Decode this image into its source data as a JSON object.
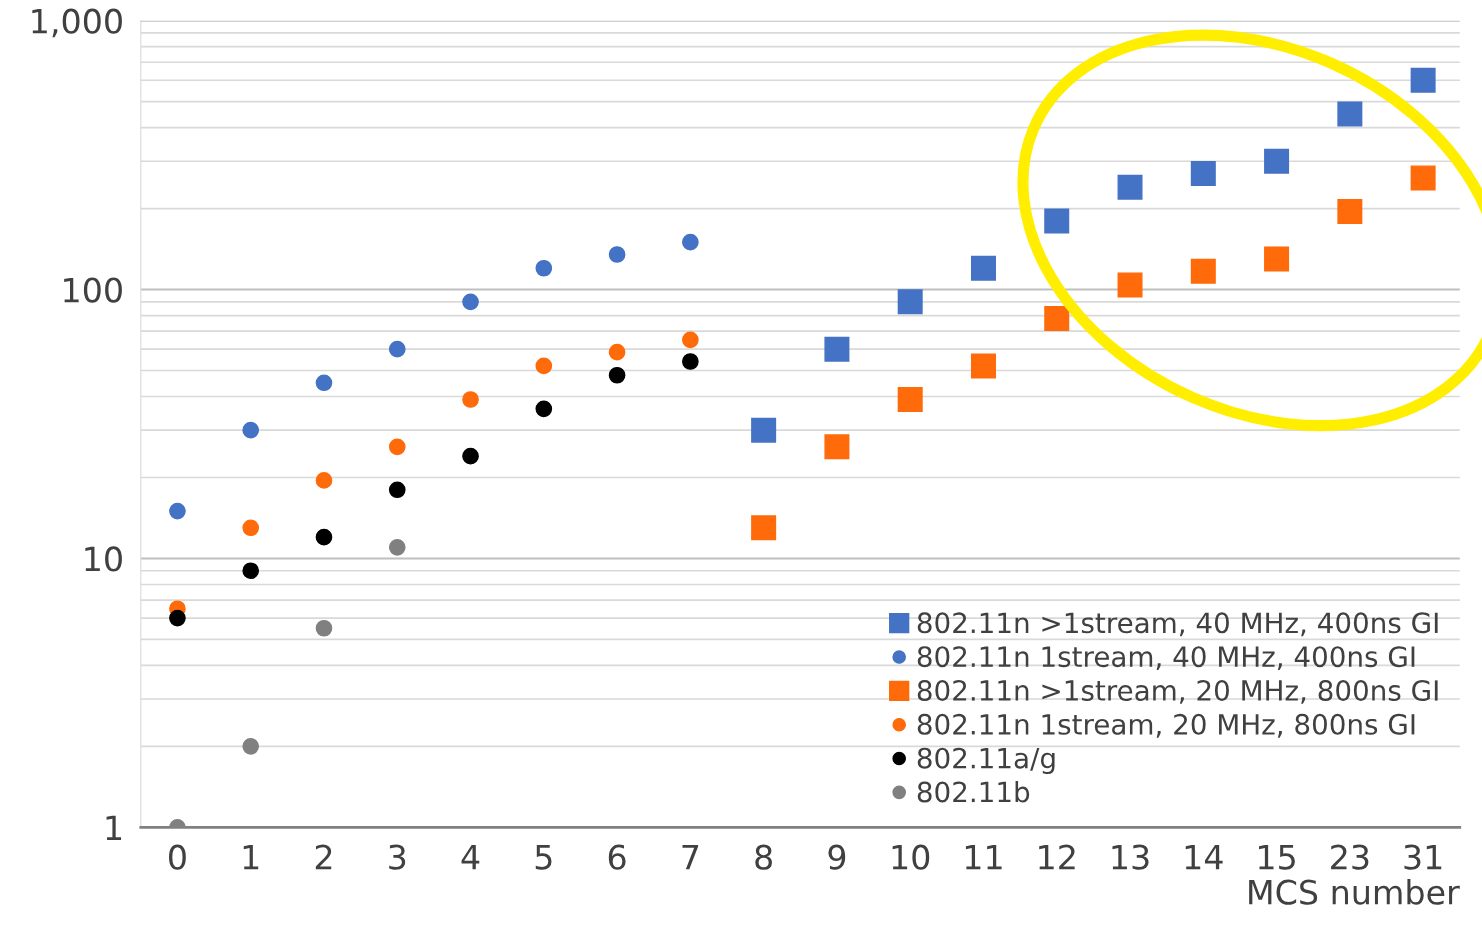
{
  "chart_data": {
    "type": "scatter",
    "xlabel": "MCS number",
    "categories": [
      "0",
      "1",
      "2",
      "3",
      "4",
      "5",
      "6",
      "7",
      "8",
      "9",
      "10",
      "11",
      "12",
      "13",
      "14",
      "15",
      "23",
      "31"
    ],
    "log": "y",
    "ylim": [
      1,
      1000
    ],
    "yticks": [
      1,
      10,
      100,
      {
        "value": 1000,
        "label": "1,000"
      }
    ],
    "grid": "y",
    "legend": "bottom right",
    "series": [
      {
        "name": "802.11n >1stream, 40 MHz, 400ns GI",
        "color": "#4472c4",
        "marker": "square",
        "values": [
          null,
          null,
          null,
          null,
          null,
          null,
          null,
          null,
          30,
          60,
          90,
          120,
          180,
          240,
          270,
          300,
          450,
          600
        ]
      },
      {
        "name": "802.11n 1stream, 40 MHz, 400ns GI",
        "color": "#4472c4",
        "marker": "circle",
        "values": [
          15,
          30,
          45,
          60,
          90,
          120,
          135,
          150,
          null,
          null,
          null,
          null,
          null,
          null,
          null,
          null,
          null,
          null
        ]
      },
      {
        "name": "802.11n >1stream, 20 MHz, 800ns GI",
        "color": "#ff6a0a",
        "marker": "square",
        "values": [
          null,
          null,
          null,
          null,
          null,
          null,
          null,
          null,
          13,
          26,
          39,
          52,
          78,
          104,
          117,
          130,
          195,
          260
        ]
      },
      {
        "name": "802.11n 1stream, 20 MHz, 800ns GI",
        "color": "#ff6a0a",
        "marker": "circle",
        "values": [
          6.5,
          13,
          19.5,
          26,
          39,
          52,
          58.5,
          65,
          null,
          null,
          null,
          null,
          null,
          null,
          null,
          null,
          null,
          null
        ]
      },
      {
        "name": "802.11a/g",
        "color": "#000000",
        "marker": "circle",
        "values": [
          6,
          9,
          12,
          18,
          24,
          36,
          48,
          54,
          null,
          null,
          null,
          null,
          null,
          null,
          null,
          null,
          null,
          null
        ]
      },
      {
        "name": "802.11b",
        "color": "#808080",
        "marker": "circle",
        "values": [
          1,
          2,
          5.5,
          11,
          null,
          null,
          null,
          null,
          null,
          null,
          null,
          null,
          null,
          null,
          null,
          null,
          null,
          null
        ]
      }
    ]
  }
}
